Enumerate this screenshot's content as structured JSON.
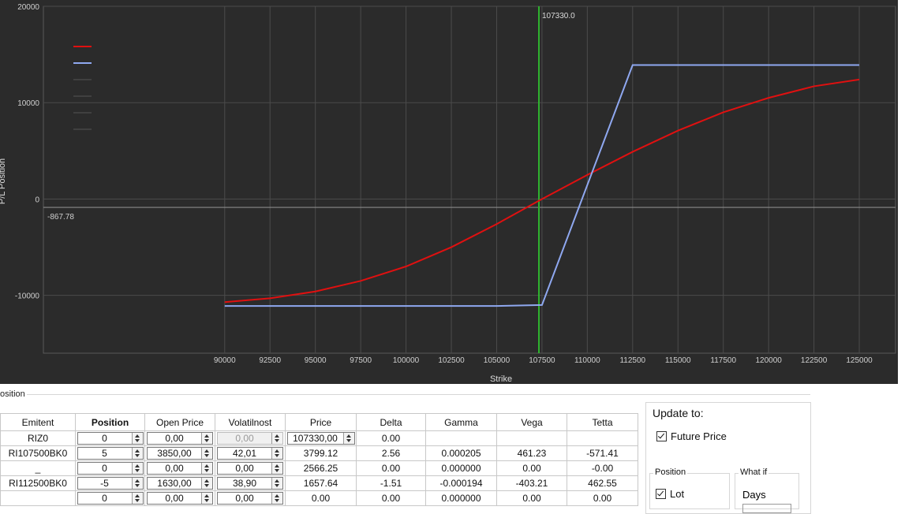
{
  "chart_data": {
    "type": "line",
    "xlabel": "Strike",
    "ylabel": "P/L Position",
    "xlim": [
      80000,
      127000
    ],
    "ylim": [
      -16000,
      20000
    ],
    "x_ticks": [
      90000,
      92500,
      95000,
      97500,
      100000,
      102500,
      105000,
      107500,
      110000,
      112500,
      115000,
      117500,
      120000,
      122500,
      125000
    ],
    "y_ticks": [
      -10000,
      0,
      10000,
      20000
    ],
    "current_price_line": {
      "x": 107330,
      "label": "107330.0",
      "color": "#2fb32f"
    },
    "zero_pl_line": {
      "y": -867.78,
      "label": "-867.78"
    },
    "series": [
      {
        "color": "#e01010",
        "x": [
          90000,
          92500,
          95000,
          97500,
          100000,
          102500,
          105000,
          107500,
          110000,
          112500,
          115000,
          117500,
          120000,
          122500,
          125000
        ],
        "y": [
          -10700,
          -10300,
          -9600,
          -8500,
          -7000,
          -5000,
          -2600,
          0,
          2500,
          4900,
          7100,
          9000,
          10500,
          11700,
          12400
        ]
      },
      {
        "color": "#8fa8f0",
        "x": [
          90000,
          105000,
          107500,
          112500,
          125000
        ],
        "y": [
          -11100,
          -11100,
          -11000,
          13900,
          13900
        ]
      }
    ],
    "grid": true,
    "legend_placement": "top-left"
  },
  "position_group_label": "osition",
  "table": {
    "headers": [
      "Emitent",
      "Position",
      "Open Price",
      "Volatilnost",
      "Price",
      "Delta",
      "Gamma",
      "Vega",
      "Tetta"
    ],
    "rows": [
      {
        "emitent": "RIZ0",
        "position": "0",
        "open_price": "0,00",
        "volatility": "0,00",
        "price": "107330,00",
        "delta": "0.00",
        "gamma": "",
        "vega": "",
        "tetta": ""
      },
      {
        "emitent": "RI107500BK0",
        "position": "5",
        "open_price": "3850,00",
        "volatility": "42,01",
        "price": "3799.12",
        "delta": "2.56",
        "gamma": "0.000205",
        "vega": "461.23",
        "tetta": "-571.41"
      },
      {
        "emitent": "_",
        "position": "0",
        "open_price": "0,00",
        "volatility": "0,00",
        "price": "2566.25",
        "delta": "0.00",
        "gamma": "0.000000",
        "vega": "0.00",
        "tetta": "-0.00"
      },
      {
        "emitent": "RI112500BK0",
        "position": "-5",
        "open_price": "1630,00",
        "volatility": "38,90",
        "price": "1657.64",
        "delta": "-1.51",
        "gamma": "-0.000194",
        "vega": "-403.21",
        "tetta": "462.55"
      },
      {
        "emitent": "",
        "position": "0",
        "open_price": "0,00",
        "volatility": "0,00",
        "price": "0.00",
        "delta": "0.00",
        "gamma": "0.000000",
        "vega": "0.00",
        "tetta": "0.00"
      }
    ]
  },
  "update_panel": {
    "title": "Update to:",
    "future_price_label": "Future Price",
    "position_group": "Position",
    "lot_label": "Lot",
    "what_if_group": "What if",
    "days_label": "Days"
  }
}
